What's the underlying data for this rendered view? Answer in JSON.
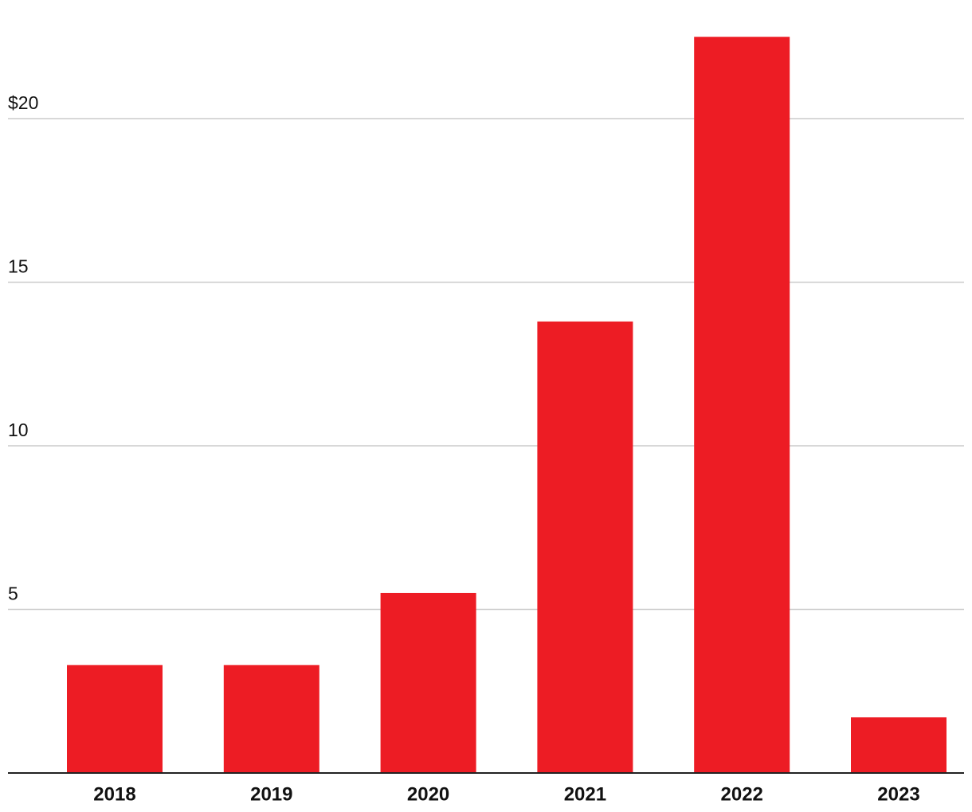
{
  "chart_data": {
    "type": "bar",
    "categories": [
      "2018",
      "2019",
      "2020",
      "2021",
      "2022",
      "2023"
    ],
    "values": [
      3.3,
      3.3,
      5.5,
      13.8,
      22.5,
      1.7
    ],
    "color": "#ed1c24",
    "ylim": [
      0,
      23
    ],
    "yticks": [
      5,
      10,
      15,
      {
        "value": 20,
        "label": "$20"
      }
    ],
    "grid": true
  }
}
